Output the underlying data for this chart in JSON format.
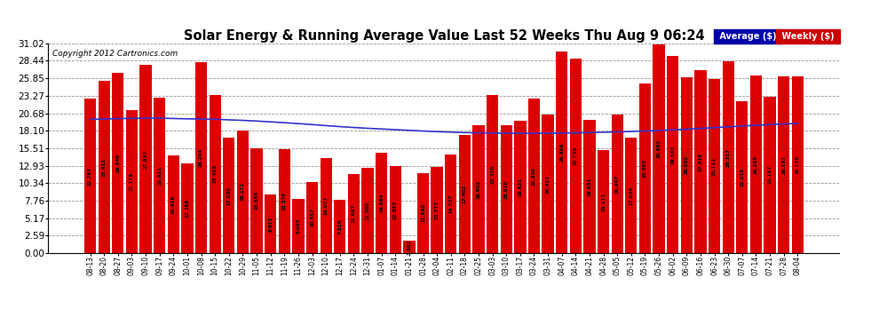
{
  "title": "Solar Energy & Running Average Value Last 52 Weeks Thu Aug 9 06:24",
  "copyright": "Copyright 2012 Cartronics.com",
  "bar_color": "#dd0000",
  "line_color": "#3333cc",
  "background_color": "#ffffff",
  "plot_bg_color": "#ffffff",
  "grid_color": "#999999",
  "yticks": [
    0.0,
    2.59,
    5.17,
    7.76,
    10.34,
    12.93,
    15.51,
    18.1,
    20.68,
    23.27,
    25.85,
    28.44,
    31.02
  ],
  "categories": [
    "08-13",
    "08-20",
    "08-27",
    "09-03",
    "09-10",
    "09-17",
    "09-24",
    "10-01",
    "10-08",
    "10-15",
    "10-22",
    "10-29",
    "11-05",
    "11-12",
    "11-19",
    "11-26",
    "12-03",
    "12-10",
    "12-17",
    "12-24",
    "12-31",
    "01-07",
    "01-14",
    "01-21",
    "01-28",
    "02-04",
    "02-11",
    "02-18",
    "02-25",
    "03-03",
    "03-10",
    "03-17",
    "03-24",
    "03-31",
    "04-07",
    "04-14",
    "04-21",
    "04-28",
    "05-05",
    "05-12",
    "05-19",
    "05-26",
    "06-02",
    "06-09",
    "06-16",
    "06-23",
    "06-30",
    "07-07",
    "07-14",
    "07-21",
    "07-28",
    "08-04"
  ],
  "bar_values": [
    22.797,
    25.412,
    26.649,
    21.178,
    27.837,
    22.931,
    14.418,
    13.268,
    28.244,
    23.435,
    17.03,
    18.172,
    15.555,
    8.611,
    15.378,
    8.043,
    10.557,
    14.077,
    7.826,
    11.687,
    12.56,
    14.864,
    12.885,
    1.802,
    11.84,
    12.777,
    14.557,
    17.402,
    18.902,
    23.32,
    18.91,
    19.621,
    22.85,
    20.457,
    29.806,
    28.756,
    19.651,
    15.177,
    20.447,
    17.044,
    25.062,
    30.882,
    29.143,
    26.052,
    27.018,
    25.722,
    28.317,
    22.518,
    26.285,
    23.157,
    26.157,
    26.15
  ],
  "avg_values": [
    19.78,
    19.82,
    19.88,
    19.92,
    19.95,
    19.95,
    19.9,
    19.85,
    19.82,
    19.78,
    19.7,
    19.62,
    19.52,
    19.4,
    19.28,
    19.15,
    19.0,
    18.85,
    18.7,
    18.57,
    18.45,
    18.35,
    18.25,
    18.15,
    18.05,
    17.96,
    17.88,
    17.82,
    17.78,
    17.75,
    17.73,
    17.72,
    17.72,
    17.73,
    17.75,
    17.78,
    17.82,
    17.87,
    17.92,
    17.98,
    18.05,
    18.13,
    18.22,
    18.32,
    18.43,
    18.55,
    18.67,
    18.78,
    18.9,
    19.0,
    19.1,
    19.18
  ],
  "legend_avg_label": "Average ($)",
  "legend_weekly_label": "Weekly ($)",
  "legend_avg_bg": "#0000aa",
  "legend_weekly_bg": "#cc0000",
  "legend_text_color": "#ffffff"
}
